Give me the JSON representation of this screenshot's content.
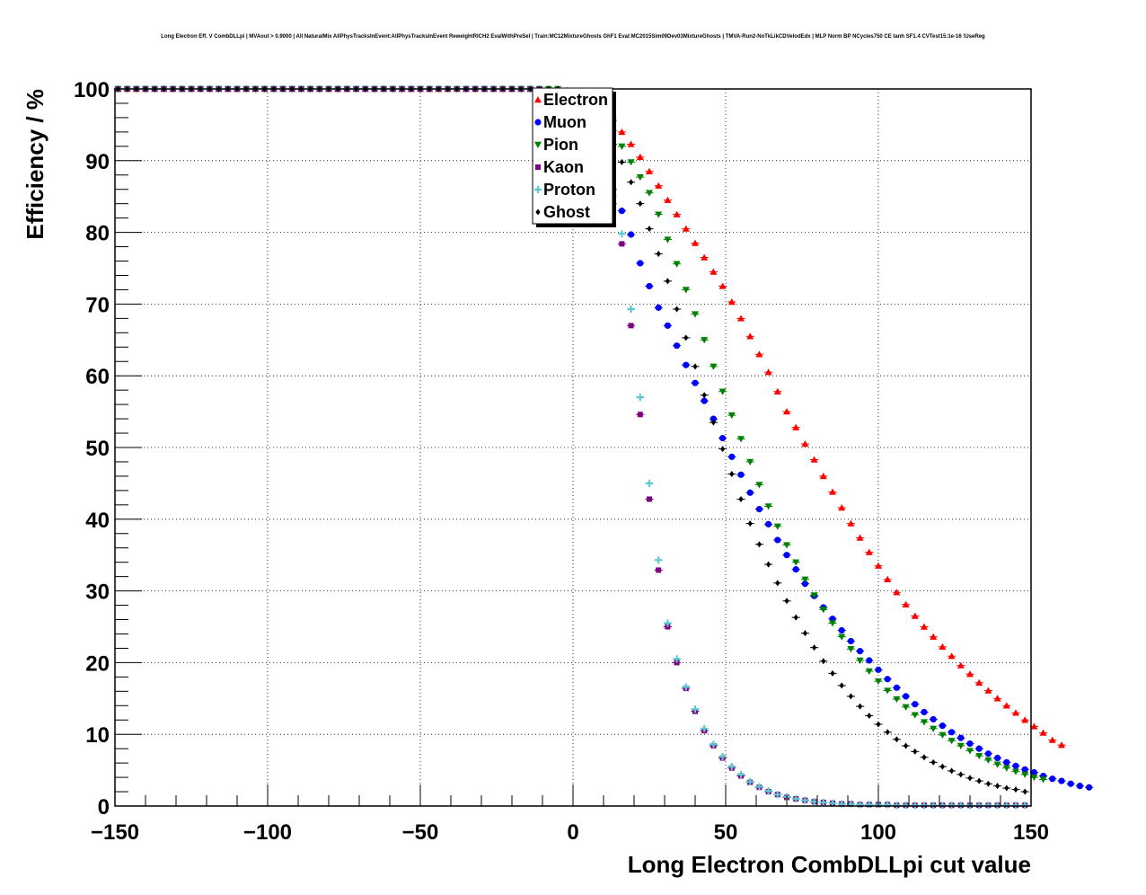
{
  "chart_data": {
    "type": "scatter",
    "title": "Long Electron Eff. V CombDLLpi | MVAout > 0.9000 | All NaturalMix AllPhysTracksInEvent:AllPhysTracksInEvent ReweightRICH2 EvalWithPreSel | Train:MC12MixtureGhosts GhF1 Eval:MC2015Sim09Dev03MixtureGhosts | TMVA-Run2-NoTkLikCDVelodEdx | MLP Norm BP NCycles750 CE tanh SF1.4 CVTest15:1e-16 !UseReg",
    "xlabel": "Long Electron CombDLLpi cut value",
    "ylabel": "Efficiency / %",
    "xlim": [
      -150,
      150
    ],
    "ylim": [
      0,
      100
    ],
    "xticks": [
      -150,
      -100,
      -50,
      0,
      50,
      100,
      150
    ],
    "xtick_labels": [
      "−150",
      "−100",
      "−50",
      "0",
      "50",
      "100",
      "150"
    ],
    "yticks": [
      0,
      10,
      20,
      30,
      40,
      50,
      60,
      70,
      80,
      90,
      100
    ],
    "grid": true,
    "legend_position": "top-center",
    "x_start": -149,
    "x_step": 3,
    "series": [
      {
        "name": "Electron",
        "color": "#ff0000",
        "marker": "triangle-up",
        "values": [
          100,
          100,
          100,
          100,
          100,
          100,
          100,
          100,
          100,
          100,
          100,
          100,
          100,
          100,
          100,
          100,
          100,
          100,
          100,
          100,
          100,
          100,
          100,
          100,
          100,
          100,
          100,
          100,
          100,
          100,
          100,
          100,
          100,
          100,
          100,
          100,
          100,
          100,
          100,
          100,
          100,
          100,
          100,
          100,
          100,
          100,
          100,
          100,
          100,
          99.8,
          99.5,
          99,
          98.2,
          97,
          95.6,
          94,
          92.3,
          90.5,
          88.5,
          86.5,
          84.5,
          82.5,
          80.5,
          78.5,
          76.5,
          74.5,
          72.5,
          70.3,
          68,
          65.5,
          63,
          60.5,
          57.8,
          55,
          52.8,
          50.5,
          48.3,
          46,
          43.8,
          41.6,
          39.4,
          37.4,
          35.4,
          33.5,
          31.6,
          29.8,
          28.1,
          26.5,
          25,
          23.6,
          22.2,
          20.9,
          19.6,
          18.4,
          17.2,
          16.1,
          15,
          14,
          13,
          12,
          11.1,
          10.2,
          9.2,
          8.5
        ]
      },
      {
        "name": "Muon",
        "color": "#0000ff",
        "marker": "circle",
        "values": [
          100,
          100,
          100,
          100,
          100,
          100,
          100,
          100,
          100,
          100,
          100,
          100,
          100,
          100,
          100,
          100,
          100,
          100,
          100,
          100,
          100,
          100,
          100,
          100,
          100,
          100,
          100,
          100,
          100,
          100,
          100,
          100,
          100,
          100,
          100,
          100,
          100,
          100,
          100,
          100,
          100,
          100,
          100,
          100,
          100,
          100,
          99.8,
          99.5,
          99,
          98,
          96.5,
          94.5,
          92,
          89,
          86,
          83,
          79.7,
          75.7,
          72.5,
          69.5,
          67,
          64.2,
          61.5,
          59,
          56.5,
          54,
          51.3,
          48.7,
          46.2,
          43.7,
          41.4,
          39.3,
          37.1,
          35,
          33,
          31,
          29.3,
          27.7,
          26.1,
          24.5,
          23,
          21.6,
          20.3,
          19,
          17.7,
          16.5,
          15.3,
          14.2,
          13.1,
          12.1,
          11.2,
          10.3,
          9.5,
          8.7,
          8,
          7.3,
          6.7,
          6.1,
          5.6,
          5.1,
          4.7,
          4.2,
          3.8,
          3.5,
          3.1,
          2.8,
          2.6
        ]
      },
      {
        "name": "Pion",
        "color": "#008000",
        "marker": "triangle-down",
        "values": [
          100,
          100,
          100,
          100,
          100,
          100,
          100,
          100,
          100,
          100,
          100,
          100,
          100,
          100,
          100,
          100,
          100,
          100,
          100,
          100,
          100,
          100,
          100,
          100,
          100,
          100,
          100,
          100,
          100,
          100,
          100,
          100,
          100,
          100,
          100,
          100,
          100,
          100,
          100,
          100,
          100,
          100,
          100,
          100,
          100,
          100,
          100,
          100,
          100,
          99.7,
          99.3,
          98.6,
          97.5,
          96,
          94.2,
          92,
          89.8,
          87.7,
          85.5,
          82.5,
          79,
          75.6,
          72,
          68.6,
          65,
          61.3,
          57.8,
          54.5,
          51.2,
          48,
          44.8,
          41.8,
          39,
          36.4,
          34,
          31.6,
          29.4,
          27.4,
          25.5,
          23.6,
          21.9,
          20.3,
          18.8,
          17.4,
          16.1,
          14.9,
          13.8,
          12.7,
          11.7,
          10.8,
          9.9,
          9.1,
          8.4,
          7.7,
          7,
          6.4,
          5.8,
          5.3,
          4.8,
          4.4,
          4,
          3.7
        ]
      },
      {
        "name": "Kaon",
        "color": "#800080",
        "marker": "square",
        "values": [
          100,
          100,
          100,
          100,
          100,
          100,
          100,
          100,
          100,
          100,
          100,
          100,
          100,
          100,
          100,
          100,
          100,
          100,
          100,
          100,
          100,
          100,
          100,
          100,
          100,
          100,
          100,
          100,
          100,
          100,
          100,
          100,
          100,
          100,
          100,
          100,
          100,
          100,
          100,
          100,
          100,
          100,
          100,
          100,
          100,
          100,
          100,
          99.8,
          99.5,
          98.5,
          97,
          95,
          92,
          88.5,
          84,
          78.4,
          67,
          54.6,
          42.8,
          32.9,
          25,
          20,
          16.4,
          13.2,
          10.5,
          8.4,
          6.7,
          5.3,
          4.2,
          3.3,
          2.6,
          2,
          1.6,
          1.2,
          1,
          0.8,
          0.6,
          0.5,
          0.4,
          0.3,
          0.3,
          0.2,
          0.2,
          0.2,
          0.2,
          0.1,
          0.1,
          0.1,
          0.1,
          0.1,
          0.1,
          0.1,
          0.1,
          0.1,
          0.1,
          0.1,
          0.1,
          0.1,
          0.1,
          0.1
        ]
      },
      {
        "name": "Proton",
        "color": "#5cc8d0",
        "marker": "cross",
        "values": [
          100,
          100,
          100,
          100,
          100,
          100,
          100,
          100,
          100,
          100,
          100,
          100,
          100,
          100,
          100,
          100,
          100,
          100,
          100,
          100,
          100,
          100,
          100,
          100,
          100,
          100,
          100,
          100,
          100,
          100,
          100,
          100,
          100,
          100,
          100,
          100,
          100,
          100,
          100,
          100,
          100,
          100,
          100,
          100,
          100,
          100,
          100,
          99.8,
          99.5,
          98.8,
          97.5,
          95.5,
          92.8,
          89,
          85,
          79.8,
          69.3,
          57,
          45,
          34.3,
          25.5,
          20.5,
          16.6,
          13.5,
          10.8,
          8.6,
          6.9,
          5.5,
          4.4,
          3.4,
          2.7,
          2.1,
          1.6,
          1.3,
          1,
          0.8,
          0.6,
          0.5,
          0.4,
          0.3,
          0.3,
          0.2,
          0.2,
          0.2,
          0.2,
          0.1,
          0.1,
          0.1,
          0.1,
          0.1,
          0.1,
          0.1,
          0.1,
          0.1,
          0.1,
          0.1,
          0.1,
          0.1,
          0.1,
          0.1
        ]
      },
      {
        "name": "Ghost",
        "color": "#000000",
        "marker": "diamond",
        "values": [
          100,
          100,
          100,
          100,
          100,
          100,
          100,
          100,
          100,
          100,
          100,
          100,
          100,
          100,
          100,
          100,
          100,
          100,
          100,
          100,
          100,
          100,
          100,
          100,
          100,
          100,
          100,
          100,
          100,
          100,
          100,
          100,
          100,
          100,
          100,
          100,
          100,
          100,
          100,
          100,
          100,
          100,
          100,
          100,
          100,
          100,
          100,
          100,
          100,
          99.6,
          99,
          98,
          96.5,
          94.6,
          92.3,
          89.8,
          87,
          84,
          80.5,
          77,
          73.2,
          69.3,
          65.3,
          61.3,
          57.3,
          53.5,
          49.8,
          46.3,
          42.8,
          39.4,
          36.5,
          33.7,
          31.1,
          28.6,
          26.3,
          24.1,
          22.1,
          20.2,
          18.5,
          16.8,
          15.3,
          13.9,
          12.6,
          11.4,
          10.3,
          9.3,
          8.4,
          7.6,
          6.8,
          6.1,
          5.5,
          4.9,
          4.4,
          3.9,
          3.5,
          3.1,
          2.8,
          2.5,
          2.3,
          2
        ]
      }
    ]
  }
}
